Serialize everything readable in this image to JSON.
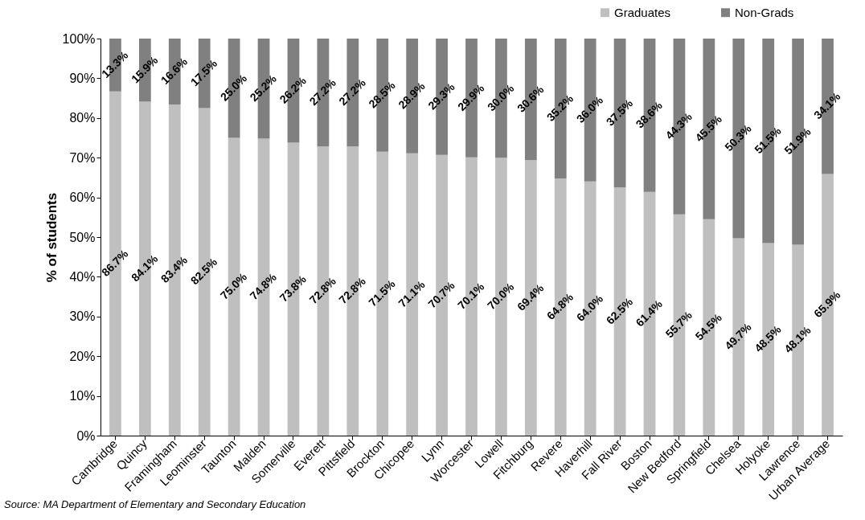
{
  "chart_data": {
    "type": "bar",
    "stacked": true,
    "ylabel": "% of students",
    "legend": "top right",
    "grid": false,
    "categories": [
      "Cambridge",
      "Quincy",
      "Framingham",
      "Leominster",
      "Taunton",
      "Malden",
      "Somerville",
      "Everett",
      "Pittsfield",
      "Brockton",
      "Chicopee",
      "Lynn",
      "Worcester",
      "Lowell",
      "Fitchburg",
      "Revere",
      "Haverhill",
      "Fall River",
      "Boston",
      "New Bedford",
      "Springfield",
      "Chelsea",
      "Holyoke",
      "Lawrence",
      "Urban Average"
    ],
    "series": [
      {
        "name": "Graduates",
        "color": "#bfbfbf",
        "values": [
          86.7,
          84.1,
          83.4,
          82.5,
          75.0,
          74.8,
          73.8,
          72.8,
          72.8,
          71.5,
          71.1,
          70.7,
          70.1,
          70.0,
          69.4,
          64.8,
          64.0,
          62.5,
          61.4,
          55.7,
          54.5,
          49.7,
          48.5,
          48.1,
          65.9
        ],
        "value_labels": [
          "86.7%",
          "84.1%",
          "83.4%",
          "82.5%",
          "75.0%",
          "74.8%",
          "73.8%",
          "72.8%",
          "72.8%",
          "71.5%",
          "71.1%",
          "70.7%",
          "70.1%",
          "70.0%",
          "69.4%",
          "64.8%",
          "64.0%",
          "62.5%",
          "61.4%",
          "55.7%",
          "54.5%",
          "49.7%",
          "48.5%",
          "48.1%",
          "65.9%"
        ]
      },
      {
        "name": "Non-Grads",
        "color": "#808080",
        "values": [
          13.3,
          15.9,
          16.6,
          17.5,
          25.0,
          25.2,
          26.2,
          27.2,
          27.2,
          28.5,
          28.9,
          29.3,
          29.9,
          30.0,
          30.6,
          35.2,
          36.0,
          37.5,
          38.6,
          44.3,
          45.5,
          50.3,
          51.5,
          51.9,
          34.1
        ],
        "value_labels": [
          "13.3%",
          "15.9%",
          "16.6%",
          "17.5%",
          "25.0%",
          "25.2%",
          "26.2%",
          "27.2%",
          "27.2%",
          "28.5%",
          "28.9%",
          "29.3%",
          "29.9%",
          "30.0%",
          "30.6%",
          "35.2%",
          "36.0%",
          "37.5%",
          "38.6%",
          "44.3%",
          "45.5%",
          "50.3%",
          "51.5%",
          "51.9%",
          "34.1%"
        ]
      }
    ],
    "ylim": [
      0,
      100
    ],
    "yticks": [
      {
        "value": 0,
        "label": "0%"
      },
      {
        "value": 10,
        "label": "10%"
      },
      {
        "value": 20,
        "label": "20%"
      },
      {
        "value": 30,
        "label": "30%"
      },
      {
        "value": 40,
        "label": "40%"
      },
      {
        "value": 50,
        "label": "50%"
      },
      {
        "value": 60,
        "label": "60%"
      },
      {
        "value": 70,
        "label": "70%"
      },
      {
        "value": 80,
        "label": "80%"
      },
      {
        "value": 90,
        "label": "90%"
      },
      {
        "value": 100,
        "label": "100%"
      }
    ],
    "annotations": [
      "Source: MA Department of Elementary and Secondary Education"
    ]
  }
}
